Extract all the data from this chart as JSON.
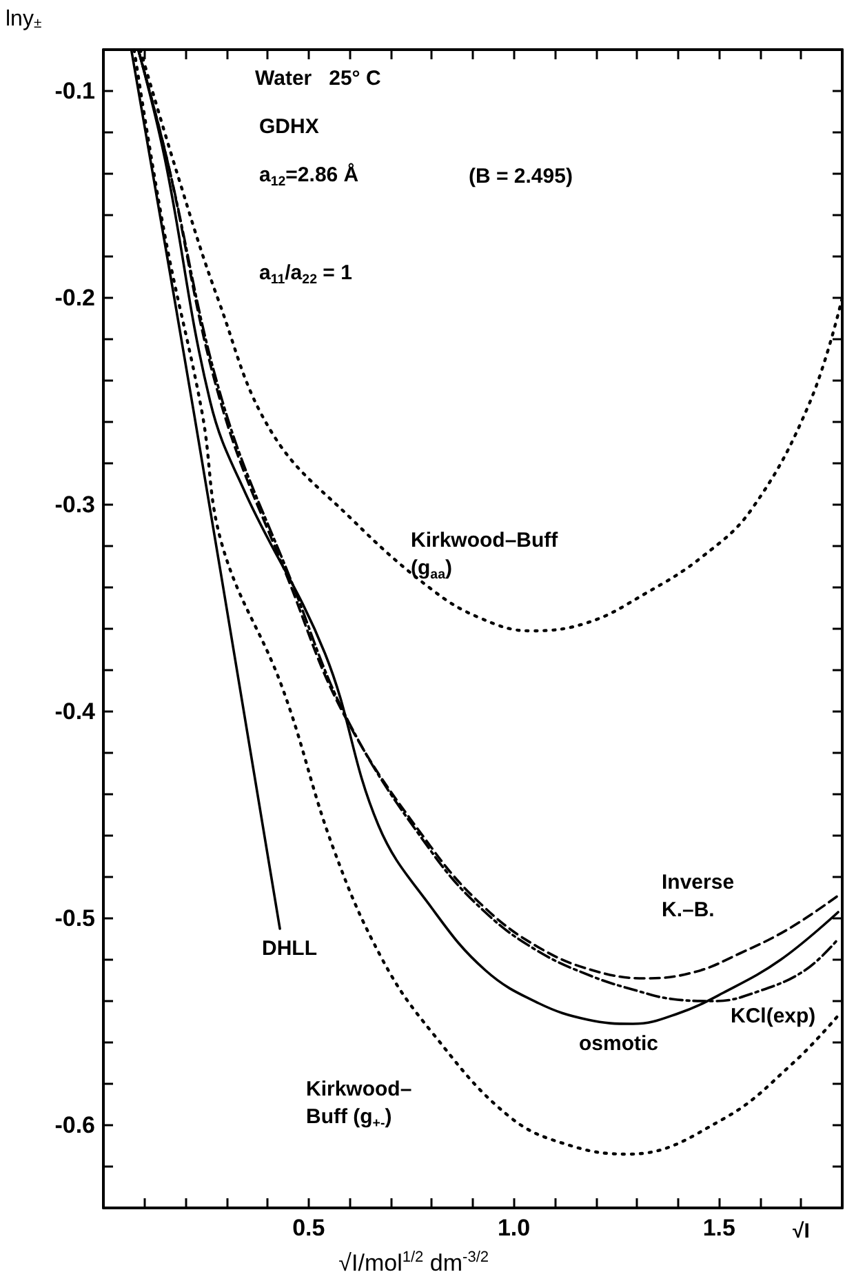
{
  "chart_data": {
    "type": "line",
    "xlabel": "√I/mol$^{1/2}$ dm$^{-3/2}$",
    "ylabel": "lny$_{±}$",
    "xlim": [
      0,
      1.8
    ],
    "ylim": [
      -0.64,
      -0.08
    ],
    "xticks": [
      {
        "value": 0.1,
        "label": null
      },
      {
        "value": 0.2,
        "label": null
      },
      {
        "value": 0.3,
        "label": null
      },
      {
        "value": 0.4,
        "label": null
      },
      {
        "value": 0.5,
        "label": "0.5"
      },
      {
        "value": 0.6,
        "label": null
      },
      {
        "value": 0.7,
        "label": null
      },
      {
        "value": 0.8,
        "label": null
      },
      {
        "value": 0.9,
        "label": null
      },
      {
        "value": 1.0,
        "label": "1.0"
      },
      {
        "value": 1.1,
        "label": null
      },
      {
        "value": 1.2,
        "label": null
      },
      {
        "value": 1.3,
        "label": null
      },
      {
        "value": 1.4,
        "label": null
      },
      {
        "value": 1.5,
        "label": "1.5"
      },
      {
        "value": 1.6,
        "label": null
      },
      {
        "value": 1.7,
        "label": null
      }
    ],
    "yticks": [
      {
        "value": -0.62,
        "label": null
      },
      {
        "value": -0.6,
        "label": "-0.6"
      },
      {
        "value": -0.58,
        "label": null
      },
      {
        "value": -0.56,
        "label": null
      },
      {
        "value": -0.54,
        "label": null
      },
      {
        "value": -0.52,
        "label": null
      },
      {
        "value": -0.5,
        "label": "-0.5"
      },
      {
        "value": -0.48,
        "label": null
      },
      {
        "value": -0.46,
        "label": null
      },
      {
        "value": -0.44,
        "label": null
      },
      {
        "value": -0.42,
        "label": null
      },
      {
        "value": -0.4,
        "label": "-0.4"
      },
      {
        "value": -0.38,
        "label": null
      },
      {
        "value": -0.36,
        "label": null
      },
      {
        "value": -0.34,
        "label": null
      },
      {
        "value": -0.32,
        "label": null
      },
      {
        "value": -0.3,
        "label": "-0.3"
      },
      {
        "value": -0.28,
        "label": null
      },
      {
        "value": -0.26,
        "label": null
      },
      {
        "value": -0.24,
        "label": null
      },
      {
        "value": -0.22,
        "label": null
      },
      {
        "value": -0.2,
        "label": "-0.2"
      },
      {
        "value": -0.18,
        "label": null
      },
      {
        "value": -0.16,
        "label": null
      },
      {
        "value": -0.14,
        "label": null
      },
      {
        "value": -0.12,
        "label": null
      },
      {
        "value": -0.1,
        "label": "-0.1"
      }
    ],
    "grid": false,
    "marker": "none",
    "series": [
      {
        "color": "#000000",
        "line_style": "solid",
        "x": [
          0.068,
          0.22,
          0.43
        ],
        "values": [
          -0.08,
          -0.255,
          -0.505
        ]
      },
      {
        "color": "#000000",
        "line_style": "solid",
        "x": [
          0.085,
          0.15,
          0.26,
          0.345,
          0.54,
          0.67,
          0.8,
          0.93,
          1.06,
          1.18,
          1.29,
          1.4,
          1.51,
          1.65,
          1.79
        ],
        "values": [
          -0.08,
          -0.133,
          -0.25,
          -0.294,
          -0.372,
          -0.455,
          -0.495,
          -0.525,
          -0.541,
          -0.549,
          -0.551,
          -0.546,
          -0.536,
          -0.52,
          -0.497
        ]
      },
      {
        "color": "#000000",
        "line_style": "dashed",
        "x": [
          0.085,
          0.155,
          0.285,
          0.45,
          0.59,
          0.8,
          0.93,
          1.06,
          1.19,
          1.32,
          1.44,
          1.55,
          1.67,
          1.79
        ],
        "values": [
          -0.08,
          -0.133,
          -0.25,
          -0.336,
          -0.403,
          -0.466,
          -0.495,
          -0.514,
          -0.525,
          -0.529,
          -0.526,
          -0.517,
          -0.505,
          -0.489
        ]
      },
      {
        "color": "#000000",
        "line_style": "dashdot",
        "x": [
          0.085,
          0.155,
          0.29,
          0.46,
          0.6,
          0.8,
          0.93,
          1.06,
          1.19,
          1.3,
          1.385,
          1.49,
          1.6,
          1.71,
          1.79
        ],
        "values": [
          -0.08,
          -0.133,
          -0.25,
          -0.338,
          -0.406,
          -0.468,
          -0.497,
          -0.516,
          -0.528,
          -0.535,
          -0.539,
          -0.54,
          -0.535,
          -0.525,
          -0.51
        ]
      },
      {
        "color": "#000000",
        "line_style": "dotted",
        "x": [
          0.09,
          0.18,
          0.28,
          0.41,
          0.605,
          0.8,
          0.92,
          1.04,
          1.18,
          1.32,
          1.46,
          1.58,
          1.72,
          1.8
        ],
        "values": [
          -0.08,
          -0.14,
          -0.201,
          -0.265,
          -0.307,
          -0.341,
          -0.355,
          -0.361,
          -0.357,
          -0.343,
          -0.325,
          -0.302,
          -0.251,
          -0.2
        ]
      },
      {
        "color": "#000000",
        "line_style": "dotted",
        "x": [
          0.075,
          0.15,
          0.24,
          0.29,
          0.435,
          0.56,
          0.68,
          0.8,
          0.99,
          1.14,
          1.28,
          1.51,
          1.68,
          1.79
        ],
        "values": [
          -0.08,
          -0.17,
          -0.255,
          -0.32,
          -0.388,
          -0.466,
          -0.52,
          -0.555,
          -0.596,
          -0.61,
          -0.614,
          -0.597,
          -0.57,
          -0.547
        ]
      }
    ],
    "annotations": [
      "Water   25° C",
      "GDHX",
      "a$_{12}$=2.86 Å",
      "(B = 2.495)",
      "a$_{11}$/a$_{22}$ = 1",
      "√I",
      "DHLL",
      "osmotic",
      "Inverse\nK.–B.",
      "KCl(exp)",
      "Kirkwood–Buff\n(g$_{aa}$)",
      "Kirkwood–\nBuff (g$_{+-}$)"
    ]
  }
}
